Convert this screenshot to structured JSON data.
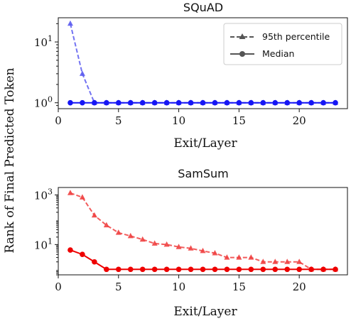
{
  "ylabel": "Rank of Final Predicted Token",
  "chart_data": [
    {
      "type": "line",
      "title": "SQuAD",
      "xlabel": "Exit/Layer",
      "ylabel": "Rank of Final Predicted Token",
      "yscale": "log",
      "xlim": [
        0,
        24
      ],
      "ylim": [
        0.8,
        25
      ],
      "xticks": [
        0,
        5,
        10,
        15,
        20
      ],
      "yticks": [
        {
          "value": 1,
          "label": "10^0",
          "base": "10",
          "exp": "0"
        },
        {
          "value": 10,
          "label": "10^1",
          "base": "10",
          "exp": "1"
        }
      ],
      "x": [
        1,
        2,
        3,
        4,
        5,
        6,
        7,
        8,
        9,
        10,
        11,
        12,
        13,
        14,
        15,
        16,
        17,
        18,
        19,
        20,
        21,
        22,
        23
      ],
      "series": [
        {
          "name": "95th percentile",
          "style": "dashed",
          "marker": "triangle",
          "color": "#5b5bf0",
          "values": [
            20,
            3,
            1,
            1,
            1,
            1,
            1,
            1,
            1,
            1,
            1,
            1,
            1,
            1,
            1,
            1,
            1,
            1,
            1,
            1,
            1,
            1,
            1
          ]
        },
        {
          "name": "Median",
          "style": "solid",
          "marker": "circle",
          "color": "#1515f5",
          "values": [
            1,
            1,
            1,
            1,
            1,
            1,
            1,
            1,
            1,
            1,
            1,
            1,
            1,
            1,
            1,
            1,
            1,
            1,
            1,
            1,
            1,
            1,
            1
          ]
        }
      ],
      "legend": {
        "position": "upper-right",
        "labels": [
          "95th percentile",
          "Median"
        ]
      },
      "grid": false
    },
    {
      "type": "line",
      "title": "SamSum",
      "xlabel": "Exit/Layer",
      "ylabel": "Rank of Final Predicted Token",
      "yscale": "log",
      "xlim": [
        0,
        24
      ],
      "ylim": [
        0.6,
        2000
      ],
      "xticks": [
        0,
        5,
        10,
        15,
        20
      ],
      "yticks": [
        {
          "value": 10,
          "label": "10^1",
          "base": "10",
          "exp": "1"
        },
        {
          "value": 1000,
          "label": "10^3",
          "base": "10",
          "exp": "3"
        }
      ],
      "x": [
        1,
        2,
        3,
        4,
        5,
        6,
        7,
        8,
        9,
        10,
        11,
        12,
        13,
        14,
        15,
        16,
        17,
        18,
        19,
        20,
        21,
        22,
        23
      ],
      "series": [
        {
          "name": "95th percentile",
          "style": "dashed",
          "marker": "triangle",
          "color": "#f04040",
          "values": [
            1200,
            800,
            150,
            60,
            30,
            22,
            16,
            11,
            10,
            8,
            7,
            5.5,
            4.5,
            3,
            3,
            3,
            2,
            2,
            2,
            2,
            1,
            1,
            1
          ]
        },
        {
          "name": "Median",
          "style": "solid",
          "marker": "circle",
          "color": "#ee0000",
          "values": [
            6,
            4,
            2,
            1,
            1,
            1,
            1,
            1,
            1,
            1,
            1,
            1,
            1,
            1,
            1,
            1,
            1,
            1,
            1,
            1,
            1,
            1,
            1
          ]
        }
      ],
      "grid": false
    }
  ]
}
